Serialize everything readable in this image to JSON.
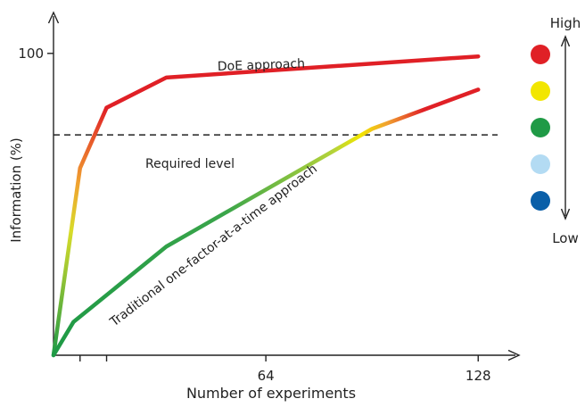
{
  "chart_data": {
    "type": "line",
    "xlabel": "Number of experiments",
    "ylabel": "Information (%)",
    "x_ticks": [
      8,
      16,
      64,
      128
    ],
    "x_tick_labels": [
      "",
      "",
      "64",
      "128"
    ],
    "y_ticks": [
      100
    ],
    "y_tick_labels": [
      "100"
    ],
    "xlim": [
      0,
      136
    ],
    "ylim": [
      0,
      110
    ],
    "required_level": {
      "label": "Required level",
      "y": 73
    },
    "series": [
      {
        "name": "DoE approach",
        "points": [
          [
            0,
            0
          ],
          [
            8,
            62
          ],
          [
            16,
            82
          ],
          [
            34,
            92
          ],
          [
            128,
            99
          ]
        ]
      },
      {
        "name": "Traditional one-factor-at-a-time approach",
        "points": [
          [
            0,
            0
          ],
          [
            6,
            11
          ],
          [
            34,
            36
          ],
          [
            96,
            75
          ],
          [
            128,
            88
          ]
        ]
      }
    ],
    "color_scale": {
      "high_label": "High",
      "low_label": "Low",
      "colors": [
        "#e02026",
        "#f2e600",
        "#1f9a46",
        "#b3dbf3",
        "#0a5fa8"
      ]
    }
  }
}
